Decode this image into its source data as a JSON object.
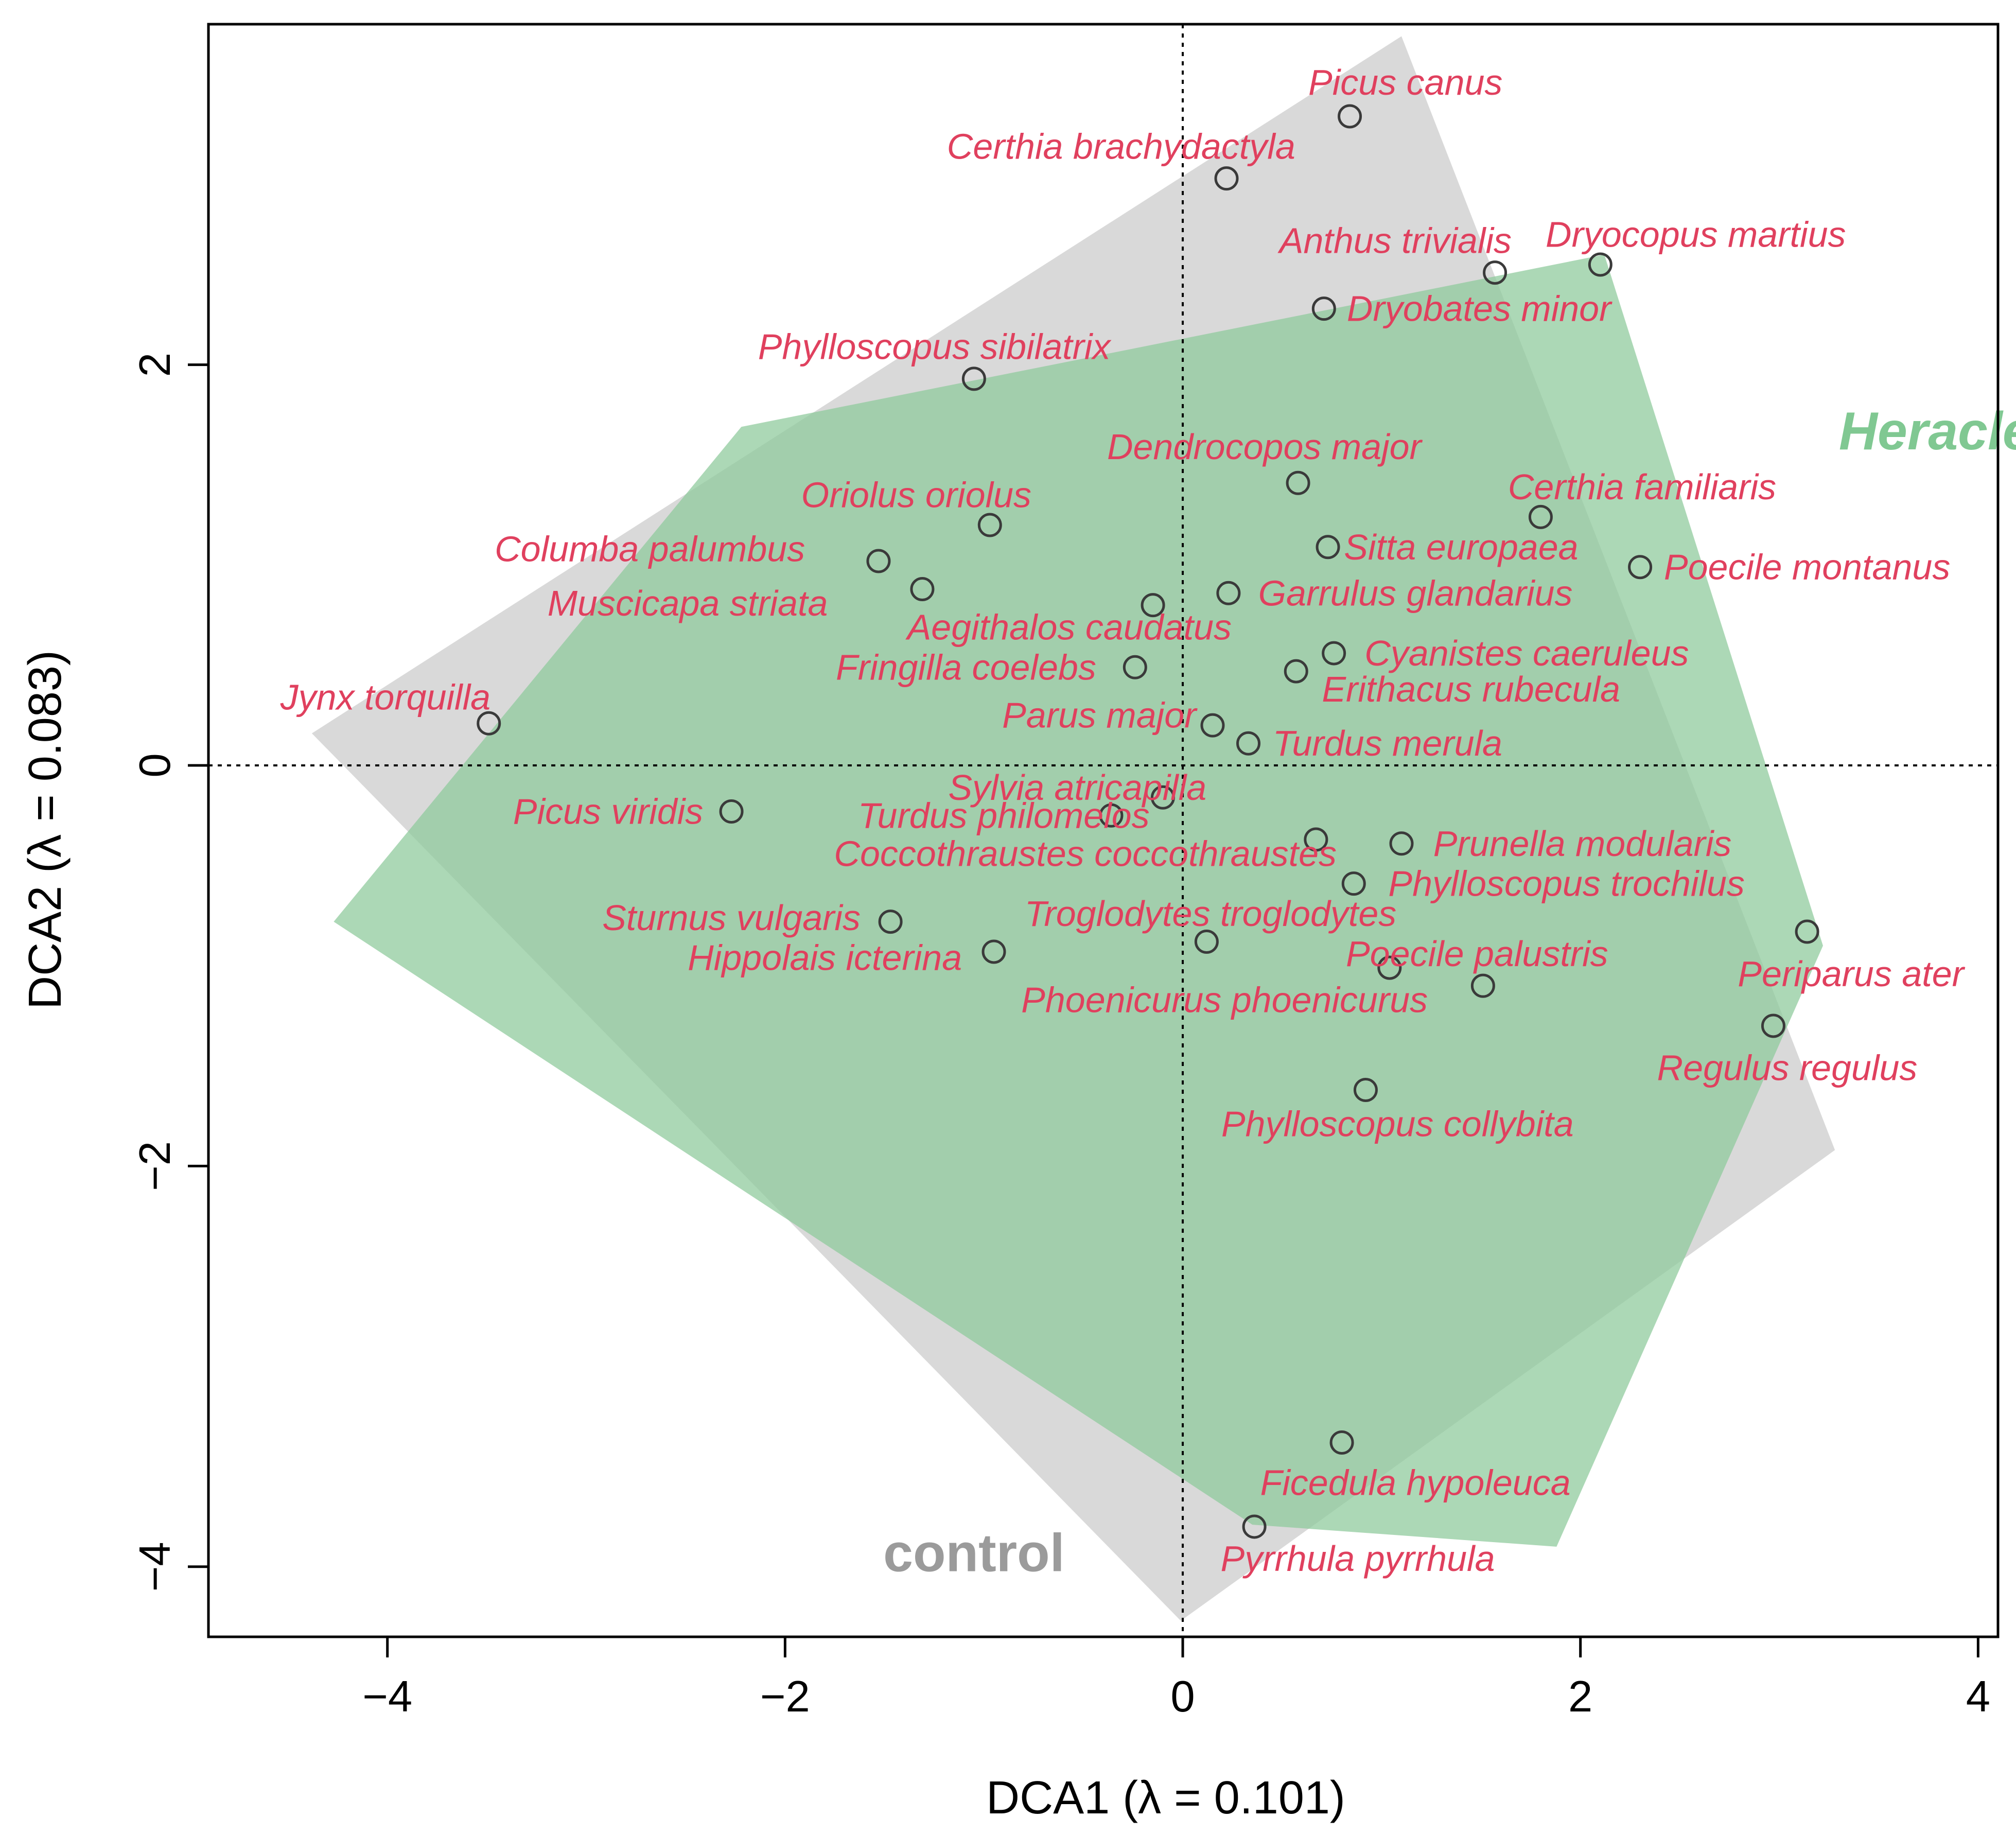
{
  "chart_data": {
    "type": "scatter",
    "title": "",
    "xlabel": "DCA1 (λ = 0.101)",
    "ylabel": "DCA2 (λ = 0.083)",
    "xlim": [
      -4.9,
      4.1
    ],
    "ylim": [
      -4.35,
      3.7
    ],
    "xticks": [
      -4,
      -2,
      0,
      2,
      4
    ],
    "yticks": [
      -4,
      -2,
      0,
      2
    ],
    "xtick_labels": [
      "−4",
      "−2",
      "0",
      "2",
      "4"
    ],
    "ytick_labels": [
      "−4",
      "−2",
      "0",
      "2"
    ],
    "reference_lines": {
      "x": 0,
      "y": 0,
      "style": "dotted"
    },
    "hulls": [
      {
        "name": "control",
        "color": "#d9d9d9",
        "label_color": "#9b9b9b",
        "vertices": [
          [
            1.1,
            3.64
          ],
          [
            3.28,
            -1.92
          ],
          [
            -0.01,
            -4.27
          ],
          [
            -4.38,
            0.16
          ]
        ],
        "label_position": [
          -1.05,
          -3.93
        ]
      },
      {
        "name": "Heracleum",
        "color": "#8cc99a",
        "label_color": "#80c892",
        "vertices": [
          [
            -2.22,
            1.69
          ],
          [
            2.12,
            2.55
          ],
          [
            3.22,
            -0.9
          ],
          [
            1.88,
            -3.9
          ],
          [
            0.35,
            -3.79
          ],
          [
            -4.27,
            -0.78
          ]
        ],
        "label_position": [
          3.3,
          1.67
        ]
      }
    ],
    "series": [
      {
        "name": "species",
        "points": [
          {
            "label": "Picus canus",
            "x": 0.84,
            "y": 3.24,
            "label_dx": 0.28,
            "label_dy": 0.17
          },
          {
            "label": "Certhia brachydactyla",
            "x": 0.22,
            "y": 2.93,
            "label_dx": -0.53,
            "label_dy": 0.16
          },
          {
            "label": "Anthus trivialis",
            "x": 1.57,
            "y": 2.46,
            "label_dx": -0.5,
            "label_dy": 0.16
          },
          {
            "label": "Dryocopus martius",
            "x": 2.1,
            "y": 2.5,
            "label_dx": 0.48,
            "label_dy": 0.15
          },
          {
            "label": "Dryobates minor",
            "x": 0.71,
            "y": 2.28,
            "label_dx": 0.78,
            "label_dy": 0.0
          },
          {
            "label": "Phylloscopus sibilatrix",
            "x": -1.05,
            "y": 1.93,
            "label_dx": -0.2,
            "label_dy": 0.16
          },
          {
            "label": "Dendrocopos major",
            "x": 0.58,
            "y": 1.41,
            "label_dx": -0.17,
            "label_dy": 0.18
          },
          {
            "label": "Certhia familiaris",
            "x": 1.8,
            "y": 1.24,
            "label_dx": 0.51,
            "label_dy": 0.15
          },
          {
            "label": "Oriolus oriolus",
            "x": -0.97,
            "y": 1.2,
            "label_dx": -0.37,
            "label_dy": 0.15
          },
          {
            "label": "Sitta europaea",
            "x": 0.73,
            "y": 1.09,
            "label_dx": 0.67,
            "label_dy": 0.0
          },
          {
            "label": "Poecile montanus",
            "x": 2.3,
            "y": 0.99,
            "label_dx": 0.84,
            "label_dy": 0.0
          },
          {
            "label": "Columba palumbus",
            "x": -1.53,
            "y": 1.02,
            "label_dx": -1.15,
            "label_dy": 0.06
          },
          {
            "label": "Garrulus glandarius",
            "x": 0.23,
            "y": 0.86,
            "label_dx": 0.94,
            "label_dy": 0.0
          },
          {
            "label": "Muscicapa striata",
            "x": -1.31,
            "y": 0.88,
            "label_dx": -1.18,
            "label_dy": -0.07
          },
          {
            "label": "Aegithalos caudatus",
            "x": -0.15,
            "y": 0.8,
            "label_dx": -0.42,
            "label_dy": -0.11
          },
          {
            "label": "Cyanistes caeruleus",
            "x": 0.76,
            "y": 0.56,
            "label_dx": 0.97,
            "label_dy": 0.0
          },
          {
            "label": "Fringilla coelebs",
            "x": -0.24,
            "y": 0.49,
            "label_dx": -0.85,
            "label_dy": 0.0
          },
          {
            "label": "Erithacus rubecula",
            "x": 0.57,
            "y": 0.47,
            "label_dx": 0.88,
            "label_dy": -0.09
          },
          {
            "label": "Jynx torquilla",
            "x": -3.49,
            "y": 0.21,
            "label_dx": -0.52,
            "label_dy": 0.13
          },
          {
            "label": "Parus major",
            "x": 0.15,
            "y": 0.2,
            "label_dx": -0.57,
            "label_dy": 0.05
          },
          {
            "label": "Turdus merula",
            "x": 0.33,
            "y": 0.11,
            "label_dx": 0.7,
            "label_dy": 0.0
          },
          {
            "label": "Sylvia atricapilla",
            "x": -0.1,
            "y": -0.16,
            "label_dx": -0.43,
            "label_dy": 0.05
          },
          {
            "label": "Picus viridis",
            "x": -2.27,
            "y": -0.23,
            "label_dx": -0.62,
            "label_dy": 0.0
          },
          {
            "label": "Turdus philomelos",
            "x": -0.36,
            "y": -0.25,
            "label_dx": -0.54,
            "label_dy": 0.0
          },
          {
            "label": "Coccothraustes coccothraustes",
            "x": 0.67,
            "y": -0.37,
            "label_dx": -1.16,
            "label_dy": -0.07
          },
          {
            "label": "Prunella modularis",
            "x": 1.1,
            "y": -0.39,
            "label_dx": 0.91,
            "label_dy": 0.0
          },
          {
            "label": "Phylloscopus trochilus",
            "x": 0.86,
            "y": -0.59,
            "label_dx": 1.07,
            "label_dy": 0.0
          },
          {
            "label": "Sturnus vulgaris",
            "x": -1.47,
            "y": -0.78,
            "label_dx": -0.8,
            "label_dy": 0.02
          },
          {
            "label": "Troglodytes troglodytes",
            "x": 0.12,
            "y": -0.88,
            "label_dx": 0.02,
            "label_dy": 0.14
          },
          {
            "label": "Hippolais icterina",
            "x": -0.95,
            "y": -0.93,
            "label_dx": -0.85,
            "label_dy": -0.03
          },
          {
            "label": "Poecile palustris",
            "x": 1.04,
            "y": -1.01,
            "label_dx": 0.44,
            "label_dy": 0.07
          },
          {
            "label": "Phoenicurus phoenicurus",
            "x": 1.51,
            "y": -1.1,
            "label_dx": -1.3,
            "label_dy": -0.07
          },
          {
            "label": "Periparus ater",
            "x": 3.14,
            "y": -0.83,
            "label_dx": 0.22,
            "label_dy": -0.21
          },
          {
            "label": "Regulus regulus",
            "x": 2.97,
            "y": -1.3,
            "label_dx": 0.07,
            "label_dy": -0.21
          },
          {
            "label": "Phylloscopus collybita",
            "x": 0.92,
            "y": -1.62,
            "label_dx": 0.16,
            "label_dy": -0.17
          },
          {
            "label": "Ficedula hypoleuca",
            "x": 0.8,
            "y": -3.38,
            "label_dx": 0.37,
            "label_dy": -0.2
          },
          {
            "label": "Pyrrhula pyrrhula",
            "x": 0.36,
            "y": -3.8,
            "label_dx": 0.52,
            "label_dy": -0.16
          }
        ]
      }
    ]
  }
}
